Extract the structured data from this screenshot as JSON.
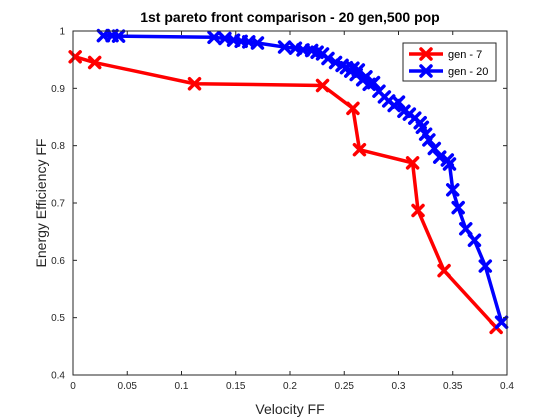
{
  "chart_data": {
    "type": "line",
    "title": "1st pareto front comparison - 20 gen,500 pop",
    "xlabel": "Velocity FF",
    "ylabel": "Energy Efficiency FF",
    "xlim": [
      0,
      0.4
    ],
    "ylim": [
      0.4,
      1.0
    ],
    "x_ticks": [
      "0",
      "0.05",
      "0.1",
      "0.15",
      "0.2",
      "0.25",
      "0.3",
      "0.35",
      "0.4"
    ],
    "y_ticks": [
      "0.4",
      "0.5",
      "0.6",
      "0.7",
      "0.8",
      "0.9",
      "1"
    ],
    "grid": false,
    "legend_position": "top-right",
    "marker": "x",
    "series": [
      {
        "name": "gen - 7",
        "color": "#ff0000",
        "x": [
          0.002,
          0.02,
          0.112,
          0.23,
          0.258,
          0.264,
          0.313,
          0.318,
          0.342,
          0.39
        ],
        "y": [
          0.955,
          0.945,
          0.908,
          0.905,
          0.865,
          0.793,
          0.77,
          0.687,
          0.582,
          0.483
        ]
      },
      {
        "name": "gen - 20",
        "color": "#0000ff",
        "x": [
          0.028,
          0.036,
          0.042,
          0.13,
          0.14,
          0.148,
          0.155,
          0.162,
          0.17,
          0.195,
          0.205,
          0.212,
          0.22,
          0.225,
          0.23,
          0.235,
          0.242,
          0.248,
          0.252,
          0.256,
          0.258,
          0.261,
          0.263,
          0.267,
          0.27,
          0.273,
          0.277,
          0.282,
          0.287,
          0.291,
          0.296,
          0.3,
          0.305,
          0.31,
          0.315,
          0.32,
          0.322,
          0.325,
          0.328,
          0.333,
          0.338,
          0.345,
          0.347,
          0.35,
          0.355,
          0.362,
          0.37,
          0.38,
          0.395
        ],
        "y": [
          0.992,
          0.992,
          0.991,
          0.989,
          0.987,
          0.984,
          0.982,
          0.981,
          0.979,
          0.972,
          0.97,
          0.967,
          0.966,
          0.963,
          0.96,
          0.952,
          0.945,
          0.94,
          0.936,
          0.93,
          0.935,
          0.924,
          0.932,
          0.915,
          0.92,
          0.907,
          0.91,
          0.895,
          0.885,
          0.878,
          0.87,
          0.876,
          0.86,
          0.855,
          0.848,
          0.84,
          0.832,
          0.82,
          0.81,
          0.795,
          0.78,
          0.775,
          0.768,
          0.723,
          0.692,
          0.655,
          0.635,
          0.59,
          0.492
        ]
      }
    ]
  }
}
